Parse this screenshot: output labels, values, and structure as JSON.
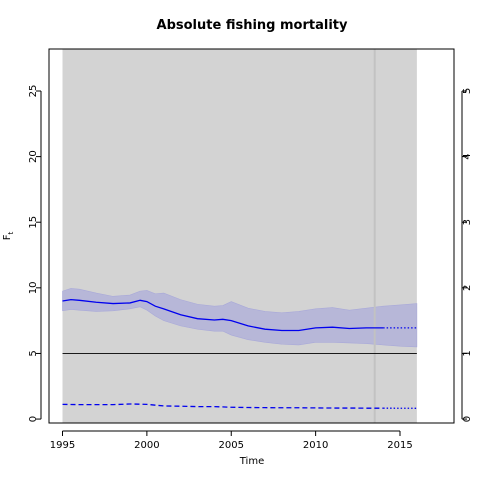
{
  "chart_data": {
    "type": "line",
    "title": "Absolute fishing mortality",
    "xlabel": "Time",
    "ylabel": "F",
    "ylabel_subscript": "t",
    "xlim": [
      1994.2,
      2018.2
    ],
    "ylim": [
      -0.3,
      28.2
    ],
    "right_ylim": [
      -0.06,
      5.64
    ],
    "x_ticks": [
      1995,
      2000,
      2005,
      2010,
      2015
    ],
    "y_ticks": [
      0,
      5,
      10,
      15,
      20,
      25
    ],
    "right_ticks": [
      0,
      1,
      2,
      3,
      4,
      5
    ],
    "shaded_region": [
      1995,
      2016
    ],
    "vertical_marker_x": 2013.5,
    "reference_line_y": 5.0,
    "series": [
      {
        "style": "solid",
        "x": [
          1995,
          1995.5,
          1996,
          1997,
          1998,
          1999,
          1999.6,
          2000,
          2000.5,
          2001,
          2002,
          2003,
          2004,
          2004.5,
          2005,
          2006,
          2007,
          2008,
          2009,
          2010,
          2011,
          2012,
          2013,
          2014
        ],
        "y": [
          9.0,
          9.1,
          9.05,
          8.9,
          8.8,
          8.85,
          9.05,
          8.95,
          8.6,
          8.4,
          7.95,
          7.65,
          7.55,
          7.6,
          7.5,
          7.1,
          6.85,
          6.75,
          6.75,
          6.95,
          7.0,
          6.9,
          6.95,
          6.95
        ]
      },
      {
        "style": "dotted",
        "x": [
          2014,
          2016
        ],
        "y": [
          6.95,
          6.95
        ]
      },
      {
        "style": "band",
        "x": [
          1995,
          1995.5,
          1996,
          1997,
          1998,
          1999,
          1999.6,
          2000,
          2000.5,
          2001,
          2002,
          2003,
          2004,
          2004.5,
          2005,
          2006,
          2007,
          2008,
          2009,
          2010,
          2011,
          2012,
          2013,
          2014,
          2015,
          2016
        ],
        "upper": [
          9.75,
          9.95,
          9.9,
          9.6,
          9.35,
          9.45,
          9.75,
          9.8,
          9.55,
          9.6,
          9.1,
          8.75,
          8.6,
          8.65,
          8.95,
          8.45,
          8.2,
          8.1,
          8.2,
          8.4,
          8.5,
          8.3,
          8.45,
          8.6,
          8.7,
          8.8
        ],
        "lower": [
          8.25,
          8.35,
          8.3,
          8.2,
          8.25,
          8.4,
          8.55,
          8.3,
          7.85,
          7.5,
          7.1,
          6.85,
          6.7,
          6.7,
          6.4,
          6.05,
          5.85,
          5.7,
          5.65,
          5.85,
          5.85,
          5.8,
          5.75,
          5.65,
          5.55,
          5.5
        ]
      },
      {
        "style": "dashed",
        "x": [
          1995,
          1996,
          1997,
          1998,
          1999,
          2000,
          2001,
          2002,
          2003,
          2004,
          2005,
          2006,
          2007,
          2008,
          2009,
          2010,
          2011,
          2012,
          2013,
          2014
        ],
        "y": [
          1.12,
          1.1,
          1.1,
          1.1,
          1.15,
          1.12,
          1.0,
          0.98,
          0.95,
          0.95,
          0.9,
          0.88,
          0.87,
          0.86,
          0.86,
          0.85,
          0.84,
          0.84,
          0.83,
          0.83
        ]
      },
      {
        "style": "dotted",
        "x": [
          2014,
          2016
        ],
        "y": [
          0.83,
          0.82
        ]
      }
    ],
    "colors": {
      "line": "#0000ee",
      "band": "#b7b7d8",
      "background_region": "#d3d3d3",
      "marker": "#c2c2c2",
      "reference": "#000000"
    },
    "grid": false,
    "legend": "none"
  }
}
